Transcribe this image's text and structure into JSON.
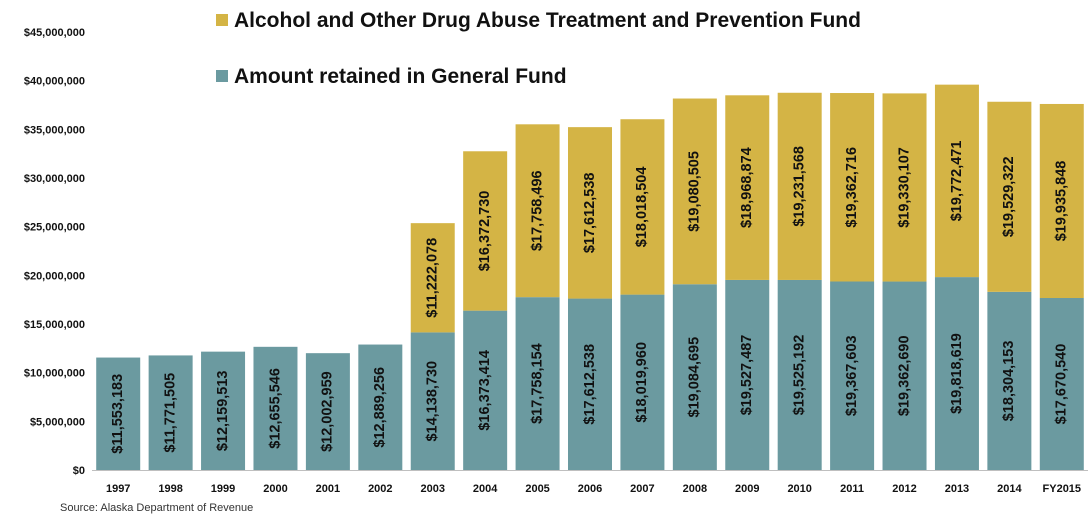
{
  "chart_data": {
    "type": "bar",
    "stacked": true,
    "title": "",
    "xlabel": "",
    "ylabel": "",
    "ylim": [
      0,
      45000000
    ],
    "ytick_step": 5000000,
    "ytick_labels": [
      "$0",
      "$5,000,000",
      "$10,000,000",
      "$15,000,000",
      "$20,000,000",
      "$25,000,000",
      "$30,000,000",
      "$35,000,000",
      "$40,000,000",
      "$45,000,000"
    ],
    "grid": false,
    "legend_position": "top",
    "categories": [
      "1997",
      "1998",
      "1999",
      "2000",
      "2001",
      "2002",
      "2003",
      "2004",
      "2005",
      "2006",
      "2007",
      "2008",
      "2009",
      "2010",
      "2011",
      "2012",
      "2013",
      "2014",
      "FY2015"
    ],
    "series": [
      {
        "name": "Amount retained in General Fund",
        "color": "#6b9aa0",
        "values": [
          11553183,
          11771505,
          12159513,
          12655546,
          12002959,
          12889256,
          14138730,
          16373414,
          17758154,
          17612538,
          18019960,
          19084695,
          19527487,
          19525192,
          19367603,
          19362690,
          19818619,
          18304153,
          17670540
        ],
        "labels": [
          "$11,553,183",
          "$11,771,505",
          "$12,159,513",
          "$12,655,546",
          "$12,002,959",
          "$12,889,256",
          "$14,138,730",
          "$16,373,414",
          "$17,758,154",
          "$17,612,538",
          "$18,019,960",
          "$19,084,695",
          "$19,527,487",
          "$19,525,192",
          "$19,367,603",
          "$19,362,690",
          "$19,818,619",
          "$18,304,153",
          "$17,670,540"
        ]
      },
      {
        "name": "Alcohol and Other Drug Abuse Treatment and Prevention Fund",
        "color": "#d4b445",
        "values": [
          0,
          0,
          0,
          0,
          0,
          0,
          11222078,
          16372730,
          17758496,
          17612538,
          18018504,
          19080505,
          18968874,
          19231568,
          19362716,
          19330107,
          19772471,
          19529322,
          19935848
        ],
        "labels": [
          "",
          "",
          "",
          "",
          "",
          "",
          "$11,222,078",
          "$16,372,730",
          "$17,758,496",
          "$17,612,538",
          "$18,018,504",
          "$19,080,505",
          "$18,968,874",
          "$19,231,568",
          "$19,362,716",
          "$19,330,107",
          "$19,772,471",
          "$19,529,322",
          "$19,935,848"
        ]
      }
    ]
  },
  "source_note": "Source: Alaska Department of Revenue"
}
